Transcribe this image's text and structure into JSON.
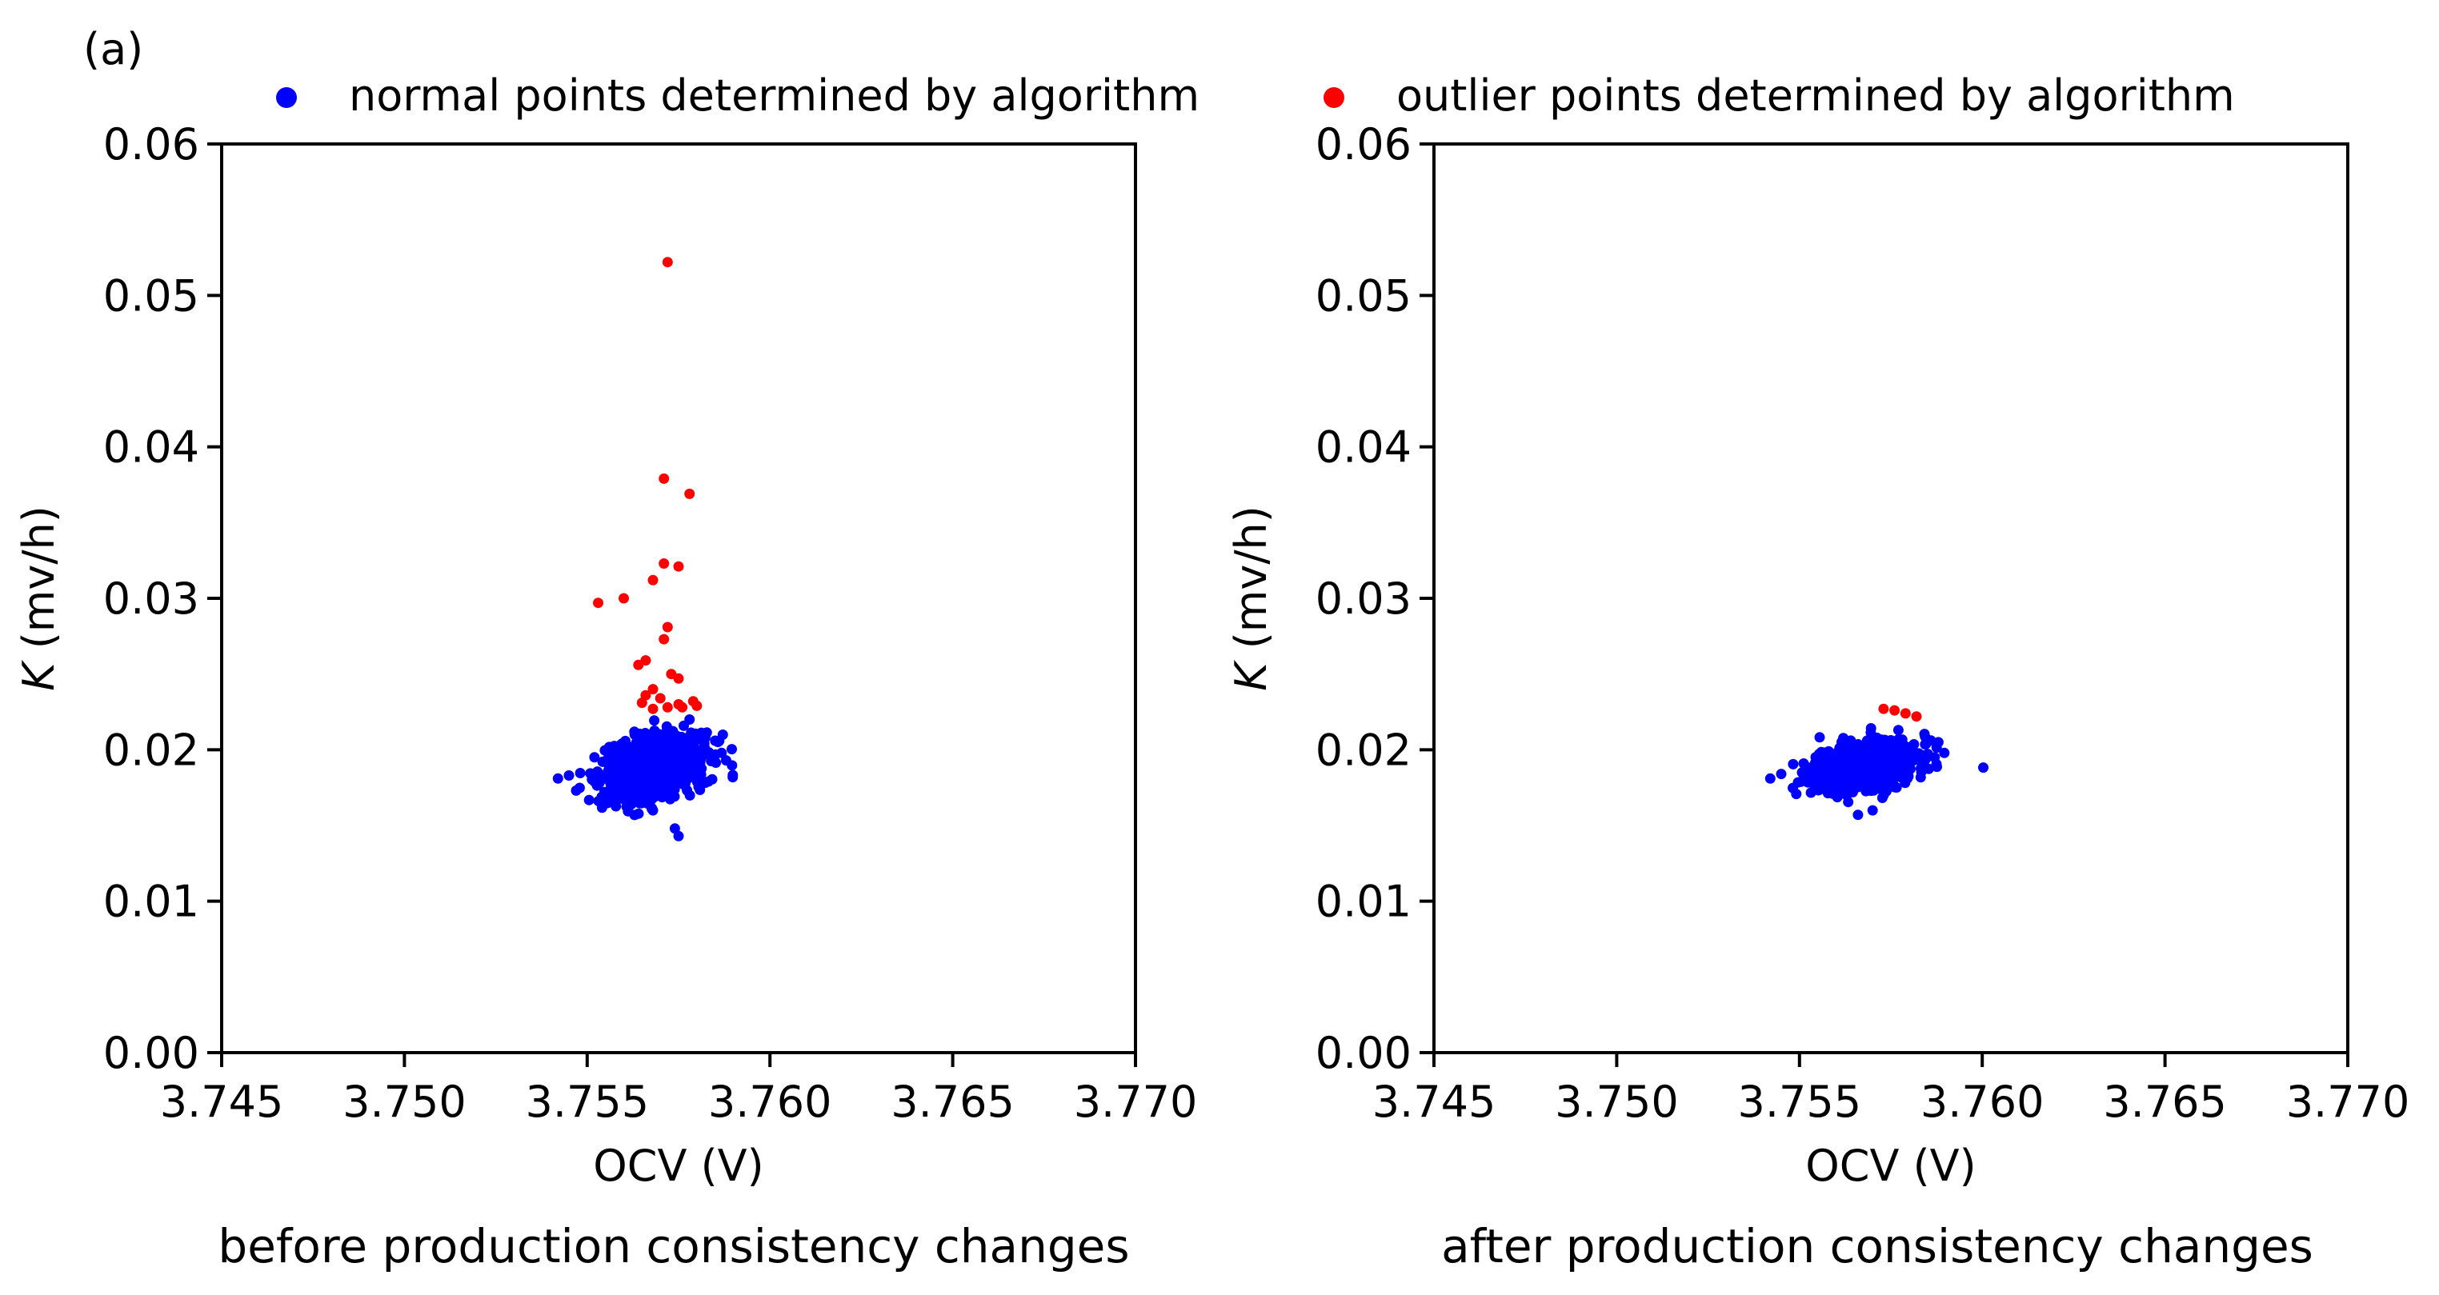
{
  "panel_label": "(a)",
  "legend": {
    "normal": {
      "label": "normal points determined by algorithm",
      "color": "#0000ff"
    },
    "outlier": {
      "label": "outlier points determined by algorithm",
      "color": "#ff0000"
    }
  },
  "chart_data": [
    {
      "type": "scatter",
      "caption": "before production consistency changes",
      "xlabel": "OCV (V)",
      "ylabel_symbol": "K",
      "ylabel_unit": " (mv/h)",
      "xlim": [
        3.745,
        3.77
      ],
      "ylim": [
        0.0,
        0.06
      ],
      "xticks": [
        3.745,
        3.75,
        3.755,
        3.76,
        3.765,
        3.77
      ],
      "xtick_labels": [
        "3.745",
        "3.750",
        "3.755",
        "3.760",
        "3.765",
        "3.770"
      ],
      "yticks": [
        0.0,
        0.01,
        0.02,
        0.03,
        0.04,
        0.05,
        0.06
      ],
      "ytick_labels": [
        "0.00",
        "0.01",
        "0.02",
        "0.03",
        "0.04",
        "0.05",
        "0.06"
      ],
      "series": [
        {
          "name": "normal points determined by algorithm",
          "color": "#0000ff",
          "cluster": {
            "center_x": 3.7568,
            "center_y": 0.0188,
            "spread_x": 0.0007,
            "spread_y": 0.0012,
            "count": 900,
            "seed": 7
          },
          "points": [
            [
              3.7542,
              0.0181
            ],
            [
              3.7545,
              0.0183
            ],
            [
              3.7588,
              0.0193
            ],
            [
              3.7585,
              0.0206
            ],
            [
              3.7575,
              0.0143
            ],
            [
              3.7574,
              0.0148
            ],
            [
              3.7578,
              0.022
            ],
            [
              3.7568,
              0.016
            ],
            [
              3.7552,
              0.0195
            ],
            [
              3.7563,
              0.021
            ]
          ]
        },
        {
          "name": "outlier points determined by algorithm",
          "color": "#ff0000",
          "points": [
            [
              3.7572,
              0.0522
            ],
            [
              3.7571,
              0.0379
            ],
            [
              3.7578,
              0.0369
            ],
            [
              3.7571,
              0.0323
            ],
            [
              3.7575,
              0.0321
            ],
            [
              3.7568,
              0.0312
            ],
            [
              3.756,
              0.03
            ],
            [
              3.7553,
              0.0297
            ],
            [
              3.7572,
              0.0281
            ],
            [
              3.7571,
              0.0273
            ],
            [
              3.7566,
              0.0259
            ],
            [
              3.7564,
              0.0256
            ],
            [
              3.7573,
              0.025
            ],
            [
              3.7575,
              0.0247
            ],
            [
              3.7568,
              0.024
            ],
            [
              3.7566,
              0.0236
            ],
            [
              3.757,
              0.0234
            ],
            [
              3.7565,
              0.0231
            ],
            [
              3.7575,
              0.023
            ],
            [
              3.7579,
              0.0232
            ],
            [
              3.7572,
              0.0228
            ],
            [
              3.7568,
              0.0227
            ],
            [
              3.7576,
              0.0228
            ],
            [
              3.758,
              0.0229
            ]
          ]
        }
      ]
    },
    {
      "type": "scatter",
      "caption": "after production consistency changes",
      "xlabel": "OCV (V)",
      "ylabel_symbol": "K",
      "ylabel_unit": " (mv/h)",
      "xlim": [
        3.745,
        3.77
      ],
      "ylim": [
        0.0,
        0.06
      ],
      "xticks": [
        3.745,
        3.75,
        3.755,
        3.76,
        3.765,
        3.77
      ],
      "xtick_labels": [
        "3.745",
        "3.750",
        "3.755",
        "3.760",
        "3.765",
        "3.770"
      ],
      "yticks": [
        0.0,
        0.01,
        0.02,
        0.03,
        0.04,
        0.05,
        0.06
      ],
      "ytick_labels": [
        "0.00",
        "0.01",
        "0.02",
        "0.03",
        "0.04",
        "0.05",
        "0.06"
      ],
      "series": [
        {
          "name": "normal points determined by algorithm",
          "color": "#0000ff",
          "cluster": {
            "center_x": 3.7568,
            "center_y": 0.019,
            "spread_x": 0.0007,
            "spread_y": 0.0009,
            "count": 800,
            "seed": 11
          },
          "points": [
            [
              3.7542,
              0.0181
            ],
            [
              3.7545,
              0.0184
            ],
            [
              3.7588,
              0.0205
            ],
            [
              3.7587,
              0.0195
            ],
            [
              3.7566,
              0.0157
            ],
            [
              3.757,
              0.016
            ]
          ]
        },
        {
          "name": "outlier points determined by algorithm",
          "color": "#ff0000",
          "points": [
            [
              3.7573,
              0.0227
            ],
            [
              3.7576,
              0.0226
            ],
            [
              3.7579,
              0.0224
            ],
            [
              3.7582,
              0.0222
            ]
          ]
        }
      ]
    }
  ]
}
